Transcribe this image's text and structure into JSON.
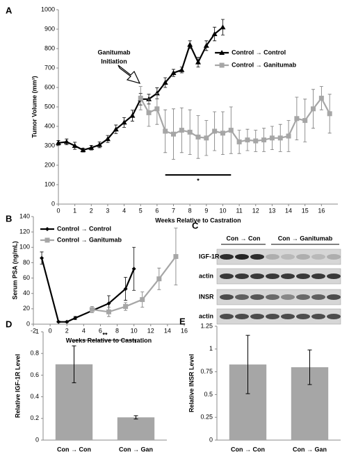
{
  "chart_data": [
    {
      "type": "line",
      "panel": "A",
      "xlabel": "Weeks Relative to Castration",
      "ylabel": "Tumor Volume (mm³)",
      "xlim": [
        0,
        17
      ],
      "xticks": [
        0,
        1,
        2,
        3,
        4,
        5,
        6,
        7,
        8,
        9,
        10,
        11,
        12,
        13,
        14,
        15,
        16
      ],
      "ylim": [
        0,
        1000
      ],
      "yticks": [
        0,
        100,
        200,
        300,
        400,
        500,
        600,
        700,
        800,
        900,
        1000
      ],
      "legend": "upper right",
      "annotations": [
        "Ganitumab",
        "Initiation"
      ],
      "significance": {
        "label": "*",
        "x": [
          6.5,
          10.5
        ],
        "y": 150
      },
      "series": [
        {
          "name": "Control → Control",
          "color": "#000000",
          "marker": "triangle",
          "x": [
            0,
            0.5,
            1,
            1.5,
            2,
            2.5,
            3,
            3.5,
            4,
            4.5,
            5,
            5.5,
            6,
            6.5,
            7,
            7.5,
            8,
            8.5,
            9,
            9.5,
            10
          ],
          "values": [
            315,
            320,
            300,
            278,
            290,
            305,
            335,
            385,
            420,
            455,
            540,
            540,
            570,
            625,
            675,
            690,
            820,
            730,
            815,
            875,
            910
          ],
          "errors": [
            12,
            15,
            18,
            10,
            12,
            15,
            18,
            22,
            25,
            28,
            30,
            25,
            28,
            25,
            18,
            15,
            20,
            25,
            25,
            35,
            40
          ]
        },
        {
          "name": "Control → Ganitumab",
          "color": "#a6a6a6",
          "marker": "square",
          "x": [
            5,
            5.5,
            6,
            6.5,
            7,
            7.5,
            8,
            8.5,
            9,
            9.5,
            10,
            10.5,
            11,
            11.5,
            12,
            12.5,
            13,
            13.5,
            14,
            14.5,
            15,
            15.5,
            16,
            16.5
          ],
          "values": [
            545,
            470,
            490,
            375,
            360,
            380,
            370,
            345,
            340,
            375,
            365,
            380,
            320,
            330,
            325,
            330,
            340,
            340,
            350,
            440,
            430,
            490,
            545,
            465
          ],
          "errors": [
            60,
            70,
            80,
            110,
            130,
            115,
            115,
            110,
            90,
            100,
            110,
            120,
            60,
            55,
            55,
            60,
            60,
            70,
            80,
            110,
            110,
            100,
            60,
            100
          ]
        }
      ]
    },
    {
      "type": "line",
      "panel": "B",
      "xlabel": "Weeks Relative to Castration",
      "ylabel": "Serum PSA (ng/mL)",
      "xlim": [
        -2,
        16
      ],
      "xticks": [
        -2,
        0,
        2,
        4,
        6,
        8,
        10,
        12,
        14,
        16
      ],
      "ylim": [
        0,
        140
      ],
      "yticks": [
        0,
        20,
        40,
        60,
        80,
        100,
        120,
        140
      ],
      "legend": "upper left",
      "series": [
        {
          "name": "Control → Control",
          "color": "#000000",
          "marker": "diamond",
          "x": [
            -1,
            1,
            2,
            3,
            7,
            9,
            10
          ],
          "values": [
            86,
            3,
            3,
            8,
            27,
            46,
            72
          ],
          "errors": [
            8,
            1,
            1,
            2,
            10,
            15,
            28
          ]
        },
        {
          "name": "Control → Ganitumab",
          "color": "#a6a6a6",
          "marker": "square",
          "x": [
            5,
            7,
            9,
            11,
            13,
            15
          ],
          "values": [
            19,
            16,
            23,
            32,
            59,
            88
          ],
          "errors": [
            4,
            6,
            5,
            10,
            14,
            37
          ]
        }
      ]
    },
    {
      "type": "bar",
      "panel": "D",
      "ylabel": "Relative IGF-1R Level",
      "color": "#a6a6a6",
      "categories": [
        "Con → Con",
        "Con → Gan"
      ],
      "values": [
        0.7,
        0.21
      ],
      "errors": [
        0.17,
        0.015
      ],
      "ylim": [
        0,
        1
      ],
      "yticks": [
        0,
        0.2,
        0.4,
        0.6,
        0.8,
        1
      ],
      "significance": "**"
    },
    {
      "type": "bar",
      "panel": "E",
      "ylabel": "Relative INSR Level",
      "color": "#a6a6a6",
      "categories": [
        "Con → Con",
        "Con → Gan"
      ],
      "values": [
        0.83,
        0.8
      ],
      "errors": [
        0.32,
        0.19
      ],
      "ylim": [
        0,
        1.25
      ],
      "yticks": [
        0,
        0.25,
        0.5,
        0.75,
        1,
        1.25
      ]
    }
  ],
  "blot": {
    "panel": "C",
    "groups": [
      "Con → Con",
      "Con → Ganitumab"
    ],
    "rows": [
      "IGF-1R",
      "actin",
      "INSR",
      "actin"
    ]
  }
}
